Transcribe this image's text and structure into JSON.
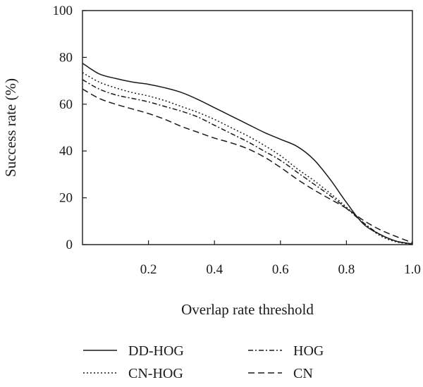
{
  "chart_data": {
    "type": "line",
    "title": "",
    "xlabel": "Overlap rate threshold",
    "ylabel": "Success rate (%)",
    "xlim": [
      0,
      1.0
    ],
    "ylim": [
      0,
      100
    ],
    "x_ticks": [
      0.2,
      0.4,
      0.6,
      0.8,
      1.0
    ],
    "x_tick_labels": [
      "0.2",
      "0.4",
      "0.6",
      "0.8",
      "1.0"
    ],
    "y_ticks": [
      0,
      20,
      40,
      60,
      80,
      100
    ],
    "y_tick_labels": [
      "0",
      "20",
      "40",
      "60",
      "80",
      "100"
    ],
    "grid": false,
    "legend_position": "bottom",
    "series": [
      {
        "name": "DD-HOG",
        "style": "solid",
        "color": "#1a1a1a",
        "points": [
          [
            0,
            77.5
          ],
          [
            0.05,
            73
          ],
          [
            0.1,
            71
          ],
          [
            0.15,
            69.5
          ],
          [
            0.2,
            68.5
          ],
          [
            0.25,
            67
          ],
          [
            0.3,
            65
          ],
          [
            0.35,
            62
          ],
          [
            0.4,
            58.5
          ],
          [
            0.45,
            55
          ],
          [
            0.5,
            51.5
          ],
          [
            0.55,
            48
          ],
          [
            0.6,
            45
          ],
          [
            0.65,
            42
          ],
          [
            0.7,
            36.5
          ],
          [
            0.75,
            28
          ],
          [
            0.8,
            18
          ],
          [
            0.85,
            9
          ],
          [
            0.9,
            4.5
          ],
          [
            0.95,
            1.5
          ],
          [
            1.0,
            0.3
          ]
        ]
      },
      {
        "name": "CN-HOG",
        "style": "dotted",
        "color": "#1a1a1a",
        "points": [
          [
            0,
            73.5
          ],
          [
            0.05,
            69.5
          ],
          [
            0.1,
            67
          ],
          [
            0.15,
            65
          ],
          [
            0.2,
            63.5
          ],
          [
            0.25,
            61.5
          ],
          [
            0.3,
            59
          ],
          [
            0.35,
            56.5
          ],
          [
            0.4,
            53.5
          ],
          [
            0.45,
            50
          ],
          [
            0.5,
            46.5
          ],
          [
            0.55,
            42.5
          ],
          [
            0.6,
            38
          ],
          [
            0.65,
            32.5
          ],
          [
            0.7,
            27.5
          ],
          [
            0.75,
            22
          ],
          [
            0.8,
            16
          ],
          [
            0.85,
            9.5
          ],
          [
            0.9,
            4
          ],
          [
            0.95,
            1.2
          ],
          [
            1.0,
            0.2
          ]
        ]
      },
      {
        "name": "HOG",
        "style": "dash-dot",
        "color": "#1a1a1a",
        "points": [
          [
            0,
            70.5
          ],
          [
            0.05,
            66.5
          ],
          [
            0.1,
            64
          ],
          [
            0.15,
            62.5
          ],
          [
            0.2,
            61
          ],
          [
            0.25,
            59
          ],
          [
            0.3,
            57
          ],
          [
            0.35,
            54.5
          ],
          [
            0.4,
            51
          ],
          [
            0.45,
            47.5
          ],
          [
            0.5,
            44
          ],
          [
            0.55,
            40
          ],
          [
            0.6,
            36
          ],
          [
            0.65,
            31
          ],
          [
            0.7,
            26
          ],
          [
            0.75,
            21
          ],
          [
            0.8,
            15.5
          ],
          [
            0.85,
            9.5
          ],
          [
            0.9,
            4.5
          ],
          [
            0.95,
            1.5
          ],
          [
            1.0,
            0.2
          ]
        ]
      },
      {
        "name": "CN",
        "style": "dashed",
        "color": "#1a1a1a",
        "points": [
          [
            0,
            66.5
          ],
          [
            0.05,
            62.5
          ],
          [
            0.1,
            60
          ],
          [
            0.15,
            58
          ],
          [
            0.2,
            56
          ],
          [
            0.25,
            53.5
          ],
          [
            0.3,
            50.5
          ],
          [
            0.35,
            48
          ],
          [
            0.4,
            45.5
          ],
          [
            0.45,
            43.5
          ],
          [
            0.5,
            41
          ],
          [
            0.55,
            37.5
          ],
          [
            0.6,
            33
          ],
          [
            0.65,
            28
          ],
          [
            0.7,
            23.5
          ],
          [
            0.75,
            19.5
          ],
          [
            0.8,
            15.5
          ],
          [
            0.85,
            10.5
          ],
          [
            0.9,
            6.5
          ],
          [
            0.95,
            3.5
          ],
          [
            1.0,
            0.8
          ]
        ]
      }
    ]
  }
}
